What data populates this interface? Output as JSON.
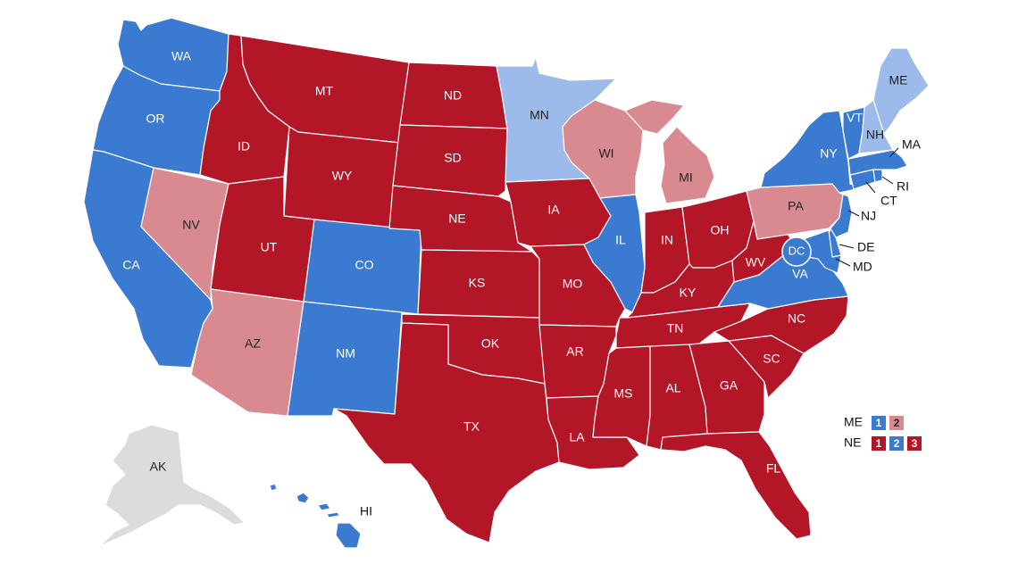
{
  "colors": {
    "strong_dem": "#3a7ad1",
    "lean_dem": "#9dbbea",
    "strong_rep": "#b31627",
    "lean_rep": "#d88a90",
    "no_data": "#dcdcdc",
    "border": "#ffffff"
  },
  "states": {
    "WA": {
      "label": "WA",
      "rating": "strong_dem"
    },
    "OR": {
      "label": "OR",
      "rating": "strong_dem"
    },
    "CA": {
      "label": "CA",
      "rating": "strong_dem"
    },
    "NV": {
      "label": "NV",
      "rating": "lean_rep"
    },
    "ID": {
      "label": "ID",
      "rating": "strong_rep"
    },
    "MT": {
      "label": "MT",
      "rating": "strong_rep"
    },
    "WY": {
      "label": "WY",
      "rating": "strong_rep"
    },
    "UT": {
      "label": "UT",
      "rating": "strong_rep"
    },
    "AZ": {
      "label": "AZ",
      "rating": "lean_rep"
    },
    "CO": {
      "label": "CO",
      "rating": "strong_dem"
    },
    "NM": {
      "label": "NM",
      "rating": "strong_dem"
    },
    "ND": {
      "label": "ND",
      "rating": "strong_rep"
    },
    "SD": {
      "label": "SD",
      "rating": "strong_rep"
    },
    "NE": {
      "label": "NE",
      "rating": "strong_rep"
    },
    "KS": {
      "label": "KS",
      "rating": "strong_rep"
    },
    "OK": {
      "label": "OK",
      "rating": "strong_rep"
    },
    "TX": {
      "label": "TX",
      "rating": "strong_rep"
    },
    "MN": {
      "label": "MN",
      "rating": "lean_dem"
    },
    "IA": {
      "label": "IA",
      "rating": "strong_rep"
    },
    "MO": {
      "label": "MO",
      "rating": "strong_rep"
    },
    "AR": {
      "label": "AR",
      "rating": "strong_rep"
    },
    "LA": {
      "label": "LA",
      "rating": "strong_rep"
    },
    "WI": {
      "label": "WI",
      "rating": "lean_rep"
    },
    "IL": {
      "label": "IL",
      "rating": "strong_dem"
    },
    "MI": {
      "label": "MI",
      "rating": "lean_rep"
    },
    "IN": {
      "label": "IN",
      "rating": "strong_rep"
    },
    "OH": {
      "label": "OH",
      "rating": "strong_rep"
    },
    "KY": {
      "label": "KY",
      "rating": "strong_rep"
    },
    "TN": {
      "label": "TN",
      "rating": "strong_rep"
    },
    "MS": {
      "label": "MS",
      "rating": "strong_rep"
    },
    "AL": {
      "label": "AL",
      "rating": "strong_rep"
    },
    "GA": {
      "label": "GA",
      "rating": "strong_rep"
    },
    "FL": {
      "label": "FL",
      "rating": "strong_rep"
    },
    "SC": {
      "label": "SC",
      "rating": "strong_rep"
    },
    "NC": {
      "label": "NC",
      "rating": "strong_rep"
    },
    "VA": {
      "label": "VA",
      "rating": "strong_dem"
    },
    "WV": {
      "label": "WV",
      "rating": "strong_rep"
    },
    "PA": {
      "label": "PA",
      "rating": "lean_rep"
    },
    "NY": {
      "label": "NY",
      "rating": "strong_dem"
    },
    "VT": {
      "label": "VT",
      "rating": "strong_dem"
    },
    "NH": {
      "label": "NH",
      "rating": "lean_dem"
    },
    "ME": {
      "label": "ME",
      "rating": "lean_dem"
    },
    "MA": {
      "label": "MA",
      "rating": "strong_dem"
    },
    "RI": {
      "label": "RI",
      "rating": "strong_dem"
    },
    "CT": {
      "label": "CT",
      "rating": "strong_dem"
    },
    "NJ": {
      "label": "NJ",
      "rating": "strong_dem"
    },
    "DE": {
      "label": "DE",
      "rating": "strong_dem"
    },
    "MD": {
      "label": "MD",
      "rating": "strong_dem"
    },
    "DC": {
      "label": "DC",
      "rating": "strong_dem"
    },
    "AK": {
      "label": "AK",
      "rating": "no_data"
    },
    "HI": {
      "label": "HI",
      "rating": "strong_dem"
    }
  },
  "legend": {
    "me": {
      "label": "ME",
      "districts": [
        {
          "num": "1",
          "rating": "strong_dem"
        },
        {
          "num": "2",
          "rating": "lean_rep"
        }
      ]
    },
    "ne": {
      "label": "NE",
      "districts": [
        {
          "num": "1",
          "rating": "strong_rep"
        },
        {
          "num": "2",
          "rating": "strong_dem"
        },
        {
          "num": "3",
          "rating": "strong_rep"
        }
      ]
    }
  }
}
